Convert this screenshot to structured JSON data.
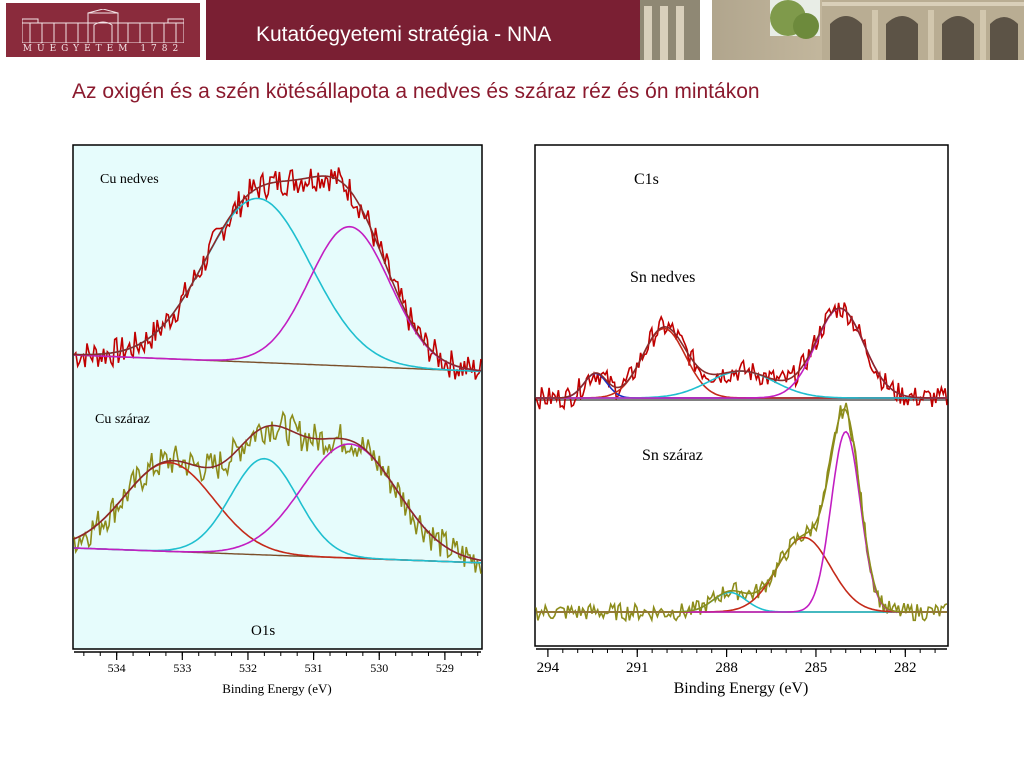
{
  "header": {
    "title": "Kutatóegyetemi stratégia - NNA",
    "logo_text": "MŰEGYETEM 1782"
  },
  "slide": {
    "title": "Az oxigén és a szén kötésállapota a nedves és száraz réz és ón mintákon"
  },
  "colors": {
    "header_bg": "#7a1f33",
    "title": "#8b1a2e",
    "o1s_background": "#e6fcfc",
    "measured_wet": "#c00000",
    "measured_dry": "#8c8c1a",
    "fit_cyan": "#1fbfcf",
    "fit_magenta": "#c21ec2",
    "fit_red": "#c42a1a",
    "fit_envelope_dark": "#8b2a2a",
    "background_line": "#7a4f2a"
  },
  "chart_data": [
    {
      "type": "line",
      "panel": "O1s",
      "label": "O1s",
      "xlabel": "Binding Energy (eV)",
      "ylabel": "",
      "xlim": [
        534.65,
        528.45
      ],
      "x_axis_reversed": true,
      "tick_labels": [
        "534",
        "533",
        "532",
        "531",
        "530",
        "529"
      ],
      "grid": false,
      "spectra": [
        {
          "label": "Cu nedves",
          "peaks": [
            {
              "component_color": "cyan",
              "center": 531.85,
              "height": 1.0,
              "fwhm": 1.9
            },
            {
              "component_color": "magenta",
              "center": 530.45,
              "height": 0.85,
              "fwhm": 1.45
            }
          ],
          "baseline": [
            0.0,
            -0.1
          ]
        },
        {
          "label": "Cu száraz",
          "peaks": [
            {
              "component_color": "red",
              "center": 533.2,
              "height": 0.6,
              "fwhm": 1.6
            },
            {
              "component_color": "cyan",
              "center": 531.75,
              "height": 0.65,
              "fwhm": 1.2
            },
            {
              "component_color": "magenta",
              "center": 530.45,
              "height": 0.77,
              "fwhm": 1.7
            }
          ],
          "baseline": [
            0.0,
            -0.1
          ]
        }
      ]
    },
    {
      "type": "line",
      "panel": "C1s",
      "label": "C1s",
      "xlabel": "Binding Energy (eV)",
      "ylabel": "",
      "xlim": [
        294.4,
        280.6
      ],
      "x_axis_reversed": true,
      "tick_labels": [
        "294",
        "291",
        "288",
        "285",
        "282"
      ],
      "grid": false,
      "spectra": [
        {
          "label": "Sn nedves",
          "peaks": [
            {
              "component_color": "blue",
              "center": 292.4,
              "height": 0.22,
              "fwhm": 0.9
            },
            {
              "component_color": "red",
              "center": 290.1,
              "height": 0.62,
              "fwhm": 1.7
            },
            {
              "component_color": "cyan",
              "center": 287.5,
              "height": 0.24,
              "fwhm": 2.6
            },
            {
              "component_color": "magenta",
              "center": 284.2,
              "height": 0.8,
              "fwhm": 1.9
            }
          ],
          "baseline": [
            0.0,
            0.0
          ]
        },
        {
          "label": "Sn száraz",
          "peaks": [
            {
              "component_color": "cyan",
              "center": 287.9,
              "height": 0.1,
              "fwhm": 1.3
            },
            {
              "component_color": "red",
              "center": 285.4,
              "height": 0.38,
              "fwhm": 2.1
            },
            {
              "component_color": "magenta",
              "center": 284.0,
              "height": 0.92,
              "fwhm": 1.15
            }
          ],
          "baseline": [
            0.0,
            0.0
          ]
        }
      ]
    }
  ]
}
